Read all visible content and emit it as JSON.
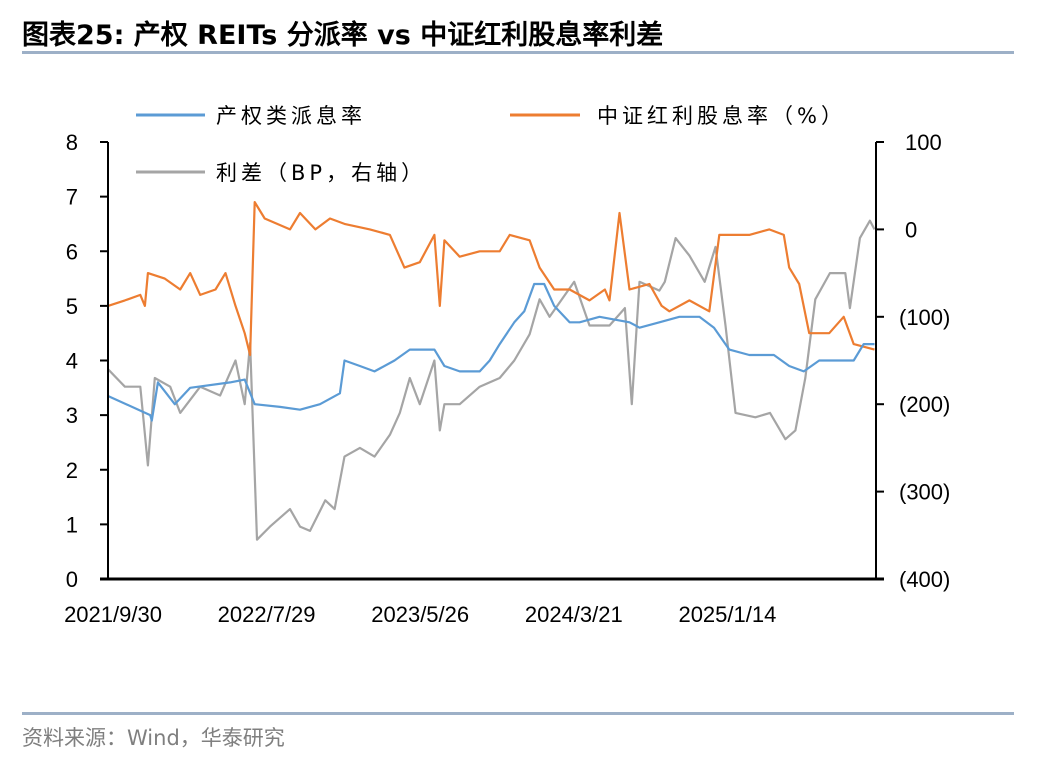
{
  "title": "图表25:  产权 REITs 分派率 vs 中证红利股息率利差",
  "source": "资料来源：Wind，华泰研究",
  "chart_data": {
    "type": "line",
    "title": "产权 REITs 分派率 vs 中证红利股息率利差",
    "x_ticks": [
      {
        "x": 0,
        "label": "2021/9/30"
      },
      {
        "x": 200,
        "label": "2022/7/29"
      },
      {
        "x": 400,
        "label": "2023/5/26"
      },
      {
        "x": 600,
        "label": "2024/3/21"
      },
      {
        "x": 800,
        "label": "2025/1/14"
      }
    ],
    "xlim": [
      0,
      1000
    ],
    "left_axis": {
      "ylim": [
        0,
        8
      ],
      "ticks": [
        "0",
        "1",
        "2",
        "3",
        "4",
        "5",
        "6",
        "7",
        "8"
      ]
    },
    "right_axis": {
      "ylim": [
        -400,
        100
      ],
      "ticks": [
        {
          "v": 100,
          "label": "100"
        },
        {
          "v": 0,
          "label": "0"
        },
        {
          "v": -100,
          "label": "(100)"
        },
        {
          "v": -200,
          "label": "(200)"
        },
        {
          "v": -300,
          "label": "(300)"
        },
        {
          "v": -400,
          "label": "(400)"
        }
      ]
    },
    "legend_placement": "top",
    "series": [
      {
        "name": "产权类派息率",
        "axis": "left",
        "color": "#5b9bd5",
        "points": [
          [
            0,
            3.35
          ],
          [
            55,
            3.0
          ],
          [
            57,
            2.9
          ],
          [
            65,
            3.6
          ],
          [
            87,
            3.2
          ],
          [
            107,
            3.5
          ],
          [
            159,
            3.6
          ],
          [
            178,
            3.65
          ],
          [
            191,
            3.2
          ],
          [
            224,
            3.15
          ],
          [
            250,
            3.1
          ],
          [
            276,
            3.2
          ],
          [
            302,
            3.4
          ],
          [
            308,
            4.0
          ],
          [
            328,
            3.9
          ],
          [
            347,
            3.8
          ],
          [
            373,
            4.0
          ],
          [
            393,
            4.2
          ],
          [
            425,
            4.2
          ],
          [
            438,
            3.9
          ],
          [
            458,
            3.8
          ],
          [
            484,
            3.8
          ],
          [
            497,
            4.0
          ],
          [
            510,
            4.3
          ],
          [
            529,
            4.7
          ],
          [
            542,
            4.9
          ],
          [
            555,
            5.4
          ],
          [
            568,
            5.4
          ],
          [
            581,
            5.0
          ],
          [
            601,
            4.7
          ],
          [
            614,
            4.7
          ],
          [
            640,
            4.8
          ],
          [
            679,
            4.7
          ],
          [
            692,
            4.6
          ],
          [
            718,
            4.7
          ],
          [
            744,
            4.8
          ],
          [
            770,
            4.8
          ],
          [
            789,
            4.6
          ],
          [
            809,
            4.2
          ],
          [
            835,
            4.1
          ],
          [
            867,
            4.1
          ],
          [
            887,
            3.9
          ],
          [
            906,
            3.8
          ],
          [
            926,
            4.0
          ],
          [
            971,
            4.0
          ],
          [
            984,
            4.3
          ],
          [
            998,
            4.3
          ]
        ]
      },
      {
        "name": "中证红利股息率（%）",
        "axis": "left",
        "color": "#ed7d31",
        "points": [
          [
            0,
            5.0
          ],
          [
            22,
            5.1
          ],
          [
            42,
            5.2
          ],
          [
            48,
            5.0
          ],
          [
            52,
            5.6
          ],
          [
            74,
            5.5
          ],
          [
            94,
            5.3
          ],
          [
            107,
            5.6
          ],
          [
            120,
            5.2
          ],
          [
            140,
            5.3
          ],
          [
            153,
            5.6
          ],
          [
            166,
            5.0
          ],
          [
            178,
            4.5
          ],
          [
            185,
            4.1
          ],
          [
            191,
            6.9
          ],
          [
            204,
            6.6
          ],
          [
            237,
            6.4
          ],
          [
            250,
            6.7
          ],
          [
            270,
            6.4
          ],
          [
            289,
            6.6
          ],
          [
            308,
            6.5
          ],
          [
            341,
            6.4
          ],
          [
            367,
            6.3
          ],
          [
            386,
            5.7
          ],
          [
            406,
            5.8
          ],
          [
            425,
            6.3
          ],
          [
            432,
            5.0
          ],
          [
            438,
            6.2
          ],
          [
            458,
            5.9
          ],
          [
            484,
            6.0
          ],
          [
            510,
            6.0
          ],
          [
            523,
            6.3
          ],
          [
            549,
            6.2
          ],
          [
            562,
            5.7
          ],
          [
            581,
            5.3
          ],
          [
            601,
            5.3
          ],
          [
            627,
            5.1
          ],
          [
            647,
            5.3
          ],
          [
            653,
            5.1
          ],
          [
            666,
            6.7
          ],
          [
            679,
            5.3
          ],
          [
            705,
            5.4
          ],
          [
            721,
            5.0
          ],
          [
            731,
            4.9
          ],
          [
            757,
            5.1
          ],
          [
            783,
            4.9
          ],
          [
            796,
            6.3
          ],
          [
            835,
            6.3
          ],
          [
            861,
            6.4
          ],
          [
            880,
            6.3
          ],
          [
            887,
            5.7
          ],
          [
            900,
            5.4
          ],
          [
            913,
            4.5
          ],
          [
            939,
            4.5
          ],
          [
            958,
            4.8
          ],
          [
            971,
            4.3
          ],
          [
            998,
            4.2
          ]
        ]
      },
      {
        "name": "利差（BP，右轴）",
        "axis": "right",
        "color": "#a5a5a5",
        "points": [
          [
            0,
            -160
          ],
          [
            22,
            -180
          ],
          [
            42,
            -180
          ],
          [
            52,
            -270
          ],
          [
            61,
            -170
          ],
          [
            81,
            -180
          ],
          [
            94,
            -210
          ],
          [
            120,
            -180
          ],
          [
            146,
            -190
          ],
          [
            166,
            -150
          ],
          [
            178,
            -200
          ],
          [
            185,
            -130
          ],
          [
            194,
            -355
          ],
          [
            211,
            -340
          ],
          [
            237,
            -320
          ],
          [
            250,
            -340
          ],
          [
            263,
            -345
          ],
          [
            283,
            -310
          ],
          [
            295,
            -320
          ],
          [
            308,
            -260
          ],
          [
            328,
            -250
          ],
          [
            347,
            -260
          ],
          [
            367,
            -235
          ],
          [
            380,
            -210
          ],
          [
            393,
            -170
          ],
          [
            406,
            -200
          ],
          [
            425,
            -150
          ],
          [
            432,
            -230
          ],
          [
            438,
            -200
          ],
          [
            458,
            -200
          ],
          [
            484,
            -180
          ],
          [
            510,
            -170
          ],
          [
            529,
            -150
          ],
          [
            549,
            -120
          ],
          [
            562,
            -80
          ],
          [
            575,
            -100
          ],
          [
            607,
            -60
          ],
          [
            627,
            -110
          ],
          [
            653,
            -110
          ],
          [
            673,
            -90
          ],
          [
            682,
            -200
          ],
          [
            692,
            -60
          ],
          [
            718,
            -70
          ],
          [
            725,
            -60
          ],
          [
            739,
            -10
          ],
          [
            757,
            -30
          ],
          [
            777,
            -60
          ],
          [
            791,
            -20
          ],
          [
            804,
            -110
          ],
          [
            817,
            -210
          ],
          [
            843,
            -215
          ],
          [
            862,
            -210
          ],
          [
            882,
            -240
          ],
          [
            895,
            -230
          ],
          [
            908,
            -170
          ],
          [
            921,
            -80
          ],
          [
            940,
            -50
          ],
          [
            960,
            -50
          ],
          [
            966,
            -90
          ],
          [
            979,
            -10
          ],
          [
            992,
            10
          ],
          [
            998,
            0
          ]
        ]
      }
    ]
  }
}
